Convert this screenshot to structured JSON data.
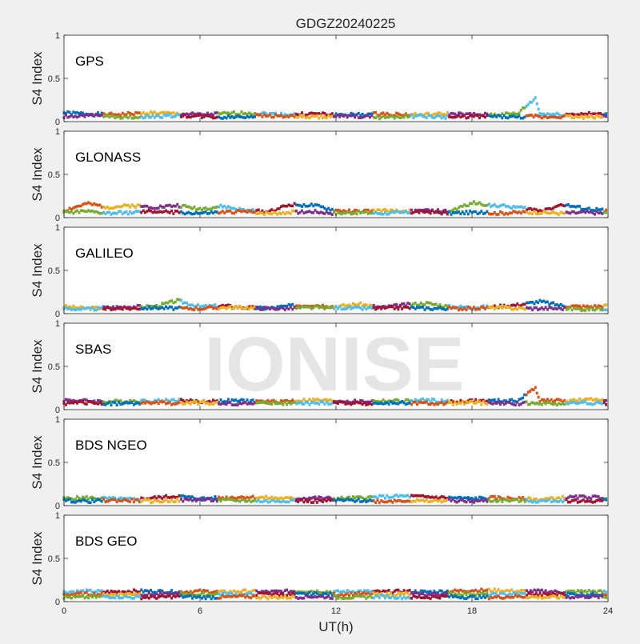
{
  "title": "GDGZ20240225",
  "watermark": "IONISE",
  "xlabel": "UT(h)",
  "ylabel": "S4 Index",
  "xlim": [
    0,
    24
  ],
  "ylim": [
    0,
    1
  ],
  "xticks": [
    "0",
    "6",
    "12",
    "18",
    "24"
  ],
  "yticks": [
    "0",
    "0.5",
    "1"
  ],
  "series_colors": [
    "#0072BD",
    "#D95319",
    "#EDB120",
    "#7E2F8E",
    "#77AC30",
    "#4DBEEE",
    "#A2142F"
  ],
  "chart_data": [
    {
      "type": "scatter",
      "label": "GPS",
      "x": [
        0,
        1,
        2,
        3,
        4,
        5,
        6,
        7,
        8,
        9,
        10,
        11,
        12,
        13,
        14,
        15,
        16,
        17,
        18,
        19,
        20,
        20.8,
        21,
        22,
        23,
        24
      ],
      "series": [
        {
          "values": [
            0.1,
            0.09,
            0.08,
            0.09,
            0.1,
            0.09,
            0.08,
            0.09,
            0.1,
            0.09,
            0.08,
            0.09,
            0.08,
            0.08,
            0.09,
            0.08,
            0.08,
            0.09,
            0.08,
            0.08,
            0.09,
            0.27,
            0.09,
            0.08,
            0.09,
            0.08
          ]
        },
        {
          "values": [
            0.06,
            0.07,
            0.06,
            0.05,
            0.06,
            0.07,
            0.06,
            0.05,
            0.06,
            0.07,
            0.06,
            0.05,
            0.06,
            0.06,
            0.05,
            0.06,
            0.06,
            0.05,
            0.06,
            0.06,
            0.05,
            0.06,
            0.05,
            0.06,
            0.05,
            0.06
          ]
        }
      ],
      "xlim": [
        0,
        24
      ],
      "ylim": [
        0,
        1
      ]
    },
    {
      "type": "scatter",
      "label": "GLONASS",
      "x": [
        0,
        1,
        2,
        3,
        4,
        5,
        6,
        7,
        8,
        9,
        10,
        11,
        12,
        13,
        14,
        15,
        16,
        17,
        18,
        19,
        20,
        21,
        22,
        23,
        24
      ],
      "series": [
        {
          "values": [
            0.08,
            0.16,
            0.12,
            0.14,
            0.12,
            0.14,
            0.1,
            0.13,
            0.08,
            0.07,
            0.15,
            0.14,
            0.08,
            0.07,
            0.08,
            0.07,
            0.08,
            0.07,
            0.17,
            0.14,
            0.12,
            0.08,
            0.15,
            0.1,
            0.08
          ]
        },
        {
          "values": [
            0.06,
            0.07,
            0.05,
            0.06,
            0.07,
            0.06,
            0.05,
            0.06,
            0.07,
            0.05,
            0.06,
            0.07,
            0.05,
            0.06,
            0.05,
            0.06,
            0.07,
            0.05,
            0.06,
            0.05,
            0.06,
            0.06,
            0.05,
            0.06,
            0.05
          ]
        }
      ],
      "xlim": [
        0,
        24
      ],
      "ylim": [
        0,
        1
      ]
    },
    {
      "type": "scatter",
      "label": "GALILEO",
      "x": [
        0,
        1,
        2,
        3,
        4,
        5,
        6,
        7,
        8,
        9,
        10,
        11,
        12,
        13,
        14,
        15,
        16,
        17,
        18,
        19,
        20,
        21,
        22,
        23,
        24
      ],
      "series": [
        {
          "values": [
            0.08,
            0.06,
            0.07,
            0.08,
            0.08,
            0.15,
            0.08,
            0.09,
            0.07,
            0.06,
            0.09,
            0.1,
            0.08,
            0.11,
            0.07,
            0.1,
            0.12,
            0.08,
            0.07,
            0.08,
            0.1,
            0.14,
            0.09,
            0.08,
            0.09
          ]
        },
        {
          "values": [
            0.06,
            0.05,
            0.06,
            0.06,
            0.07,
            0.06,
            0.06,
            0.07,
            0.07,
            0.06,
            0.06,
            0.07,
            0.07,
            0.06,
            0.06,
            0.07,
            0.06,
            0.06,
            0.06,
            0.07,
            0.06,
            0.06,
            0.06,
            0.05,
            0.06
          ]
        }
      ],
      "xlim": [
        0,
        24
      ],
      "ylim": [
        0,
        1
      ]
    },
    {
      "type": "scatter",
      "label": "SBAS",
      "x": [
        0,
        1,
        2,
        3,
        4,
        5,
        6,
        7,
        8,
        9,
        10,
        11,
        12,
        13,
        14,
        15,
        16,
        17,
        18,
        19,
        20,
        20.8,
        21,
        22,
        23,
        24
      ],
      "series": [
        {
          "values": [
            0.11,
            0.1,
            0.09,
            0.1,
            0.1,
            0.11,
            0.09,
            0.1,
            0.1,
            0.09,
            0.1,
            0.11,
            0.1,
            0.09,
            0.1,
            0.1,
            0.11,
            0.09,
            0.1,
            0.1,
            0.1,
            0.25,
            0.11,
            0.1,
            0.11,
            0.12
          ]
        },
        {
          "values": [
            0.07,
            0.08,
            0.07,
            0.07,
            0.08,
            0.07,
            0.08,
            0.07,
            0.07,
            0.08,
            0.07,
            0.07,
            0.08,
            0.07,
            0.07,
            0.08,
            0.07,
            0.07,
            0.08,
            0.07,
            0.07,
            0.08,
            0.07,
            0.07,
            0.08,
            0.07
          ]
        }
      ],
      "xlim": [
        0,
        24
      ],
      "ylim": [
        0,
        1
      ]
    },
    {
      "type": "scatter",
      "label": "BDS NGEO",
      "x": [
        0,
        1,
        2,
        3,
        4,
        5,
        6,
        7,
        8,
        9,
        10,
        11,
        12,
        13,
        14,
        15,
        16,
        17,
        18,
        19,
        20,
        21,
        22,
        23,
        24
      ],
      "series": [
        {
          "values": [
            0.08,
            0.09,
            0.08,
            0.07,
            0.09,
            0.11,
            0.08,
            0.09,
            0.1,
            0.09,
            0.08,
            0.09,
            0.08,
            0.09,
            0.1,
            0.11,
            0.1,
            0.09,
            0.08,
            0.09,
            0.08,
            0.07,
            0.09,
            0.1,
            0.09
          ]
        },
        {
          "values": [
            0.06,
            0.05,
            0.06,
            0.06,
            0.05,
            0.06,
            0.07,
            0.06,
            0.06,
            0.05,
            0.06,
            0.05,
            0.06,
            0.06,
            0.05,
            0.06,
            0.05,
            0.06,
            0.05,
            0.06,
            0.06,
            0.05,
            0.06,
            0.05,
            0.06
          ]
        }
      ],
      "xlim": [
        0,
        24
      ],
      "ylim": [
        0,
        1
      ]
    },
    {
      "type": "scatter",
      "label": "BDS GEO",
      "x": [
        0,
        1,
        2,
        3,
        4,
        5,
        6,
        7,
        8,
        9,
        10,
        11,
        12,
        13,
        14,
        15,
        16,
        17,
        18,
        19,
        20,
        21,
        22,
        23,
        24
      ],
      "series": [
        {
          "values": [
            0.11,
            0.12,
            0.11,
            0.12,
            0.12,
            0.11,
            0.12,
            0.11,
            0.12,
            0.11,
            0.12,
            0.12,
            0.11,
            0.12,
            0.11,
            0.12,
            0.11,
            0.12,
            0.13,
            0.13,
            0.12,
            0.12,
            0.11,
            0.12,
            0.11
          ]
        },
        {
          "values": [
            0.08,
            0.09,
            0.08,
            0.09,
            0.08,
            0.09,
            0.08,
            0.09,
            0.08,
            0.09,
            0.08,
            0.09,
            0.08,
            0.09,
            0.08,
            0.09,
            0.08,
            0.09,
            0.09,
            0.08,
            0.09,
            0.08,
            0.09,
            0.08,
            0.09
          ]
        },
        {
          "values": [
            0.05,
            0.05,
            0.06,
            0.05,
            0.05,
            0.06,
            0.05,
            0.05,
            0.06,
            0.05,
            0.05,
            0.06,
            0.05,
            0.05,
            0.06,
            0.05,
            0.05,
            0.06,
            0.05,
            0.05,
            0.06,
            0.05,
            0.05,
            0.06,
            0.05
          ]
        }
      ],
      "xlim": [
        0,
        24
      ],
      "ylim": [
        0,
        1
      ]
    }
  ]
}
